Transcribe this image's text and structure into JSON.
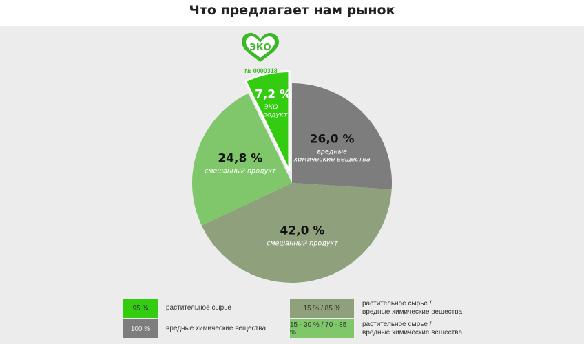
{
  "title": "Что предлагает нам рынок",
  "eco_logo": {
    "text": "ЭКО",
    "number": "№ 0000318"
  },
  "chart_data": {
    "type": "pie",
    "title": "Что предлагает нам рынок",
    "slices": [
      {
        "pct_label": "26,0 %",
        "value": 26.0,
        "label_lines": [
          "вредные",
          "химические вещества"
        ],
        "color": "#7d7d7d",
        "exploded": false
      },
      {
        "pct_label": "42,0 %",
        "value": 42.0,
        "label_lines": [
          "смешанный продукт"
        ],
        "color": "#8fa07c",
        "exploded": false
      },
      {
        "pct_label": "24,8 %",
        "value": 24.8,
        "label_lines": [
          "смешанный продукт"
        ],
        "color": "#7fc76a",
        "exploded": false
      },
      {
        "pct_label": "7,2 %",
        "value": 7.2,
        "label_lines": [
          "ЭКО -",
          "продукт"
        ],
        "color": "#33cc11",
        "exploded": true
      }
    ]
  },
  "legend": [
    {
      "swatch": "95 %",
      "color": "#33cc11",
      "text_lines": [
        "растительное сырье"
      ]
    },
    {
      "swatch": "100 %",
      "color": "#7d7d7d",
      "text_lines": [
        "вредные химические вещества"
      ]
    },
    {
      "swatch": "15 % / 85 %",
      "color": "#8fa07c",
      "text_lines": [
        "растительное сырье /",
        "вредные химические вещества"
      ]
    },
    {
      "swatch": "15 - 30 % / 70 - 85 %",
      "color": "#7fc76a",
      "text_lines": [
        "растительное сырье /",
        "вредные химические вещества"
      ]
    }
  ]
}
